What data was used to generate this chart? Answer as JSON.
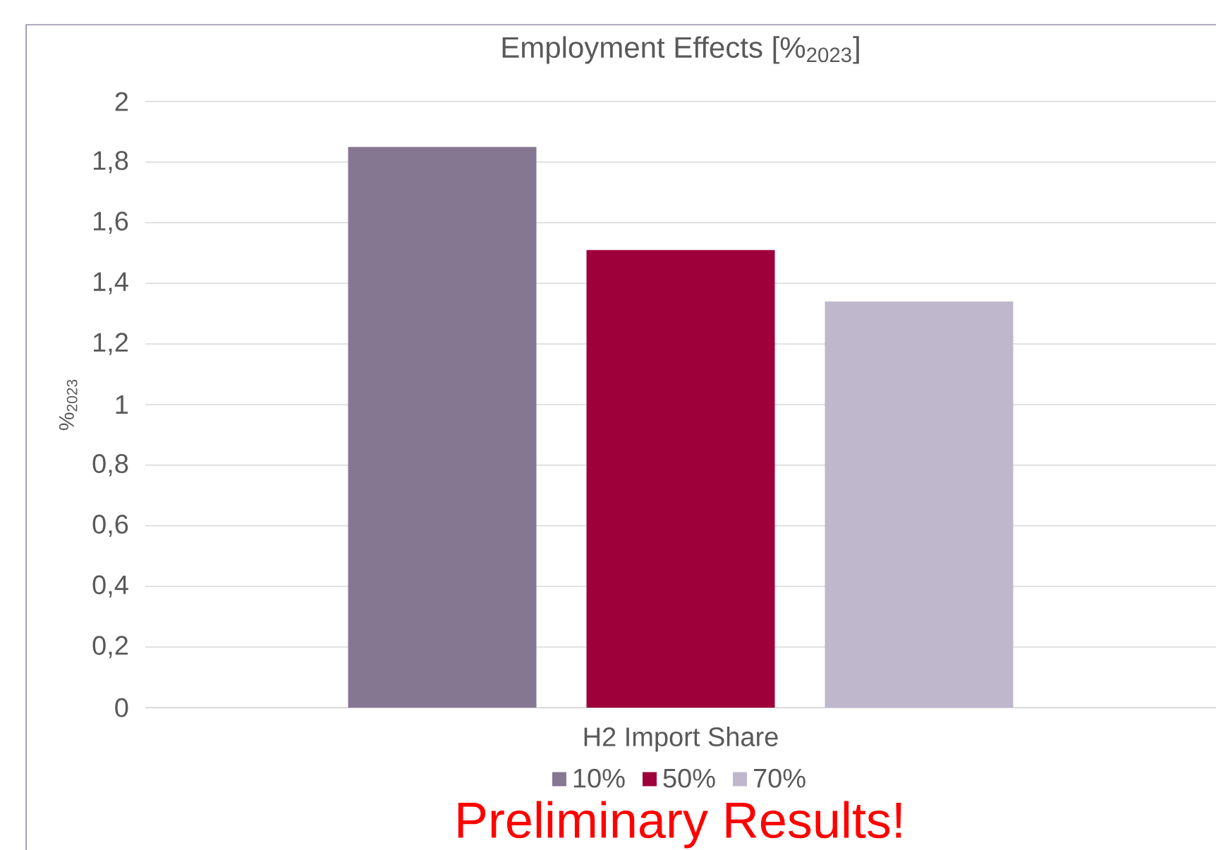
{
  "chart_data": {
    "type": "bar",
    "title": "Employment Effects [%$_{2023}$]",
    "xlabel": "H2 Import Share",
    "ylabel": "%$_{2023}$",
    "categories": [
      null
    ],
    "series": [
      {
        "name": "10%",
        "color": "#857792",
        "values": [
          1.85
        ]
      },
      {
        "name": "50%",
        "color": "#9e003a",
        "values": [
          1.51
        ]
      },
      {
        "name": "70%",
        "color": "#bfb7cc",
        "values": [
          1.34
        ]
      }
    ],
    "ylim": [
      0,
      2
    ],
    "yticks": [
      0,
      {
        "value": 0.2,
        "label": "0,2"
      },
      {
        "value": 0.4,
        "label": "0,4"
      },
      {
        "value": 0.6,
        "label": "0,6"
      },
      {
        "value": 0.8,
        "label": "0,8"
      },
      1,
      {
        "value": 1.2,
        "label": "1,2"
      },
      {
        "value": 1.4,
        "label": "1,4"
      },
      {
        "value": 1.6,
        "label": "1,6"
      },
      {
        "value": 1.8,
        "label": "1,8"
      },
      2
    ],
    "grid": "y",
    "legend": "bottom",
    "annotations": [
      "Preliminary Results!"
    ]
  }
}
